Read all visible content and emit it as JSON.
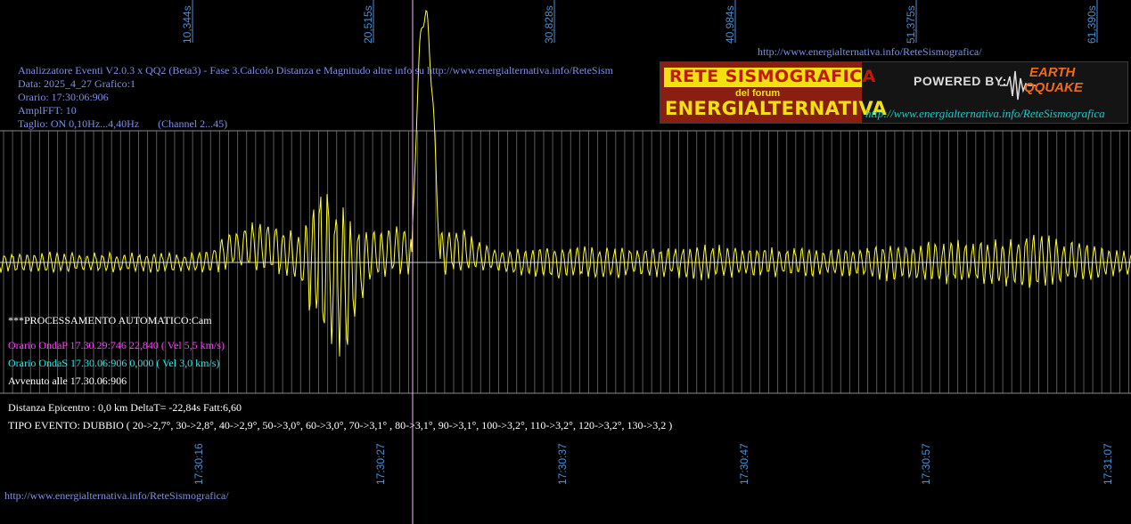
{
  "top_ticks": [
    "10,344s",
    "20,515s",
    "30,828s",
    "40,984s",
    "51,375s",
    "61,390s"
  ],
  "bottom_ticks": [
    "17:30:16",
    "17:30:27",
    "17:30:37",
    "17:30:47",
    "17:30:57",
    "17:31:07"
  ],
  "top_url": "http://www.energialternativa.info/ReteSismografica/",
  "header": {
    "line1": "Analizzatore Eventi V2.0.3 x QQ2 (Beta3) - Fase 3.Calcolo Distanza e Magnitudo altre info su http://www.energialternativa.info/ReteSism",
    "line2": "Data: 2025_4_27 Grafico:1",
    "line3": "Orario: 17:30:06:906",
    "line4": "AmplFFT: 10",
    "line5": "Taglio: ON 0,10Hz...4,40Hz       (Channel 2...45)"
  },
  "logo": {
    "line1": "RETE SISMOGRAFICA",
    "line2": "del forum",
    "line3": "ENERGIALTERNATIVA",
    "powered": "POWERED BY:",
    "brand1": "EARTH",
    "brand2": "QQUAKE",
    "url": "http://www.energialternativa.info/ReteSismografica"
  },
  "processing": {
    "title": "***PROCESSAMENTO AUTOMATICO:Cam",
    "ondaP": "Orario OndaP 17.30.29:746  22,840 ( Vel 5,5 km/s)",
    "ondaS": "Orario OndaS 17.30.06:906  0,000 ( Vel 3,0 km/s)",
    "avvenuto": "Avvenuto alle 17.30.06:906"
  },
  "results": {
    "distanza": "Distanza Epicentro : 0,0 km DeltaT= -22,84s  Fatt:6,60",
    "tipo": "TIPO EVENTO: DUBBIO ( 20->2,7°, 30->2,8°, 40->2,9°, 50->3,0°, 60->3,0°, 70->3,1° , 80->3,1°, 90->3,1°, 100->3,2°, 110->3,2°, 120->3,2°, 130->3,2 )"
  },
  "bottom_url": "http://www.energialternativa.info/ReteSismografica/",
  "colors": {
    "trace": "#ffff33",
    "marker": "#ffb0ff",
    "grid": "#8a8a8a",
    "ticks": "#4a8fd6",
    "ondaP": "#ff40ff",
    "ondaS": "#2ee6e6"
  },
  "chart_data": {
    "type": "line",
    "title": "",
    "xlabel": "",
    "ylabel": "",
    "x_ticks_seconds": [
      "10,344s",
      "20,515s",
      "30,828s",
      "40,984s",
      "51,375s",
      "61,390s"
    ],
    "x_ticks_time": [
      "17:30:16",
      "17:30:27",
      "17:30:37",
      "17:30:47",
      "17:30:57",
      "17:31:07"
    ],
    "event_marker_time": "17:30:29:746",
    "series": [
      {
        "envelope_amplitude": [
          0.35,
          0.35,
          0.38,
          0.33,
          0.36,
          0.34,
          0.35,
          0.36,
          0.33,
          0.45,
          0.7,
          0.9,
          1.0,
          0.95,
          3.2,
          2.6,
          0.9,
          0.85,
          0.9,
          0.85,
          0.85,
          0.5,
          0.4,
          0.55,
          0.6,
          0.6,
          0.55,
          0.55,
          0.5,
          0.55,
          0.6,
          0.7,
          0.5,
          0.55,
          0.55,
          0.55,
          0.5,
          0.55,
          0.65,
          0.7,
          0.75,
          0.8,
          0.75,
          0.8,
          0.95,
          1.1,
          0.8,
          0.8,
          0.5,
          0.45
        ],
        "baseline_offset": [
          0,
          0,
          0,
          0,
          0,
          0,
          0,
          0,
          0,
          0,
          -0.5,
          -0.6,
          -0.5,
          -0.1,
          0,
          0.9,
          -0.3,
          -0.4,
          -0.5,
          -0.5,
          -0.4,
          -0.2,
          0,
          0,
          0,
          0,
          0,
          0,
          0,
          0,
          0,
          0,
          0,
          0,
          0,
          0,
          0,
          0,
          0,
          0,
          0,
          0,
          0,
          0,
          0,
          0,
          0,
          0,
          0,
          0
        ]
      }
    ]
  }
}
